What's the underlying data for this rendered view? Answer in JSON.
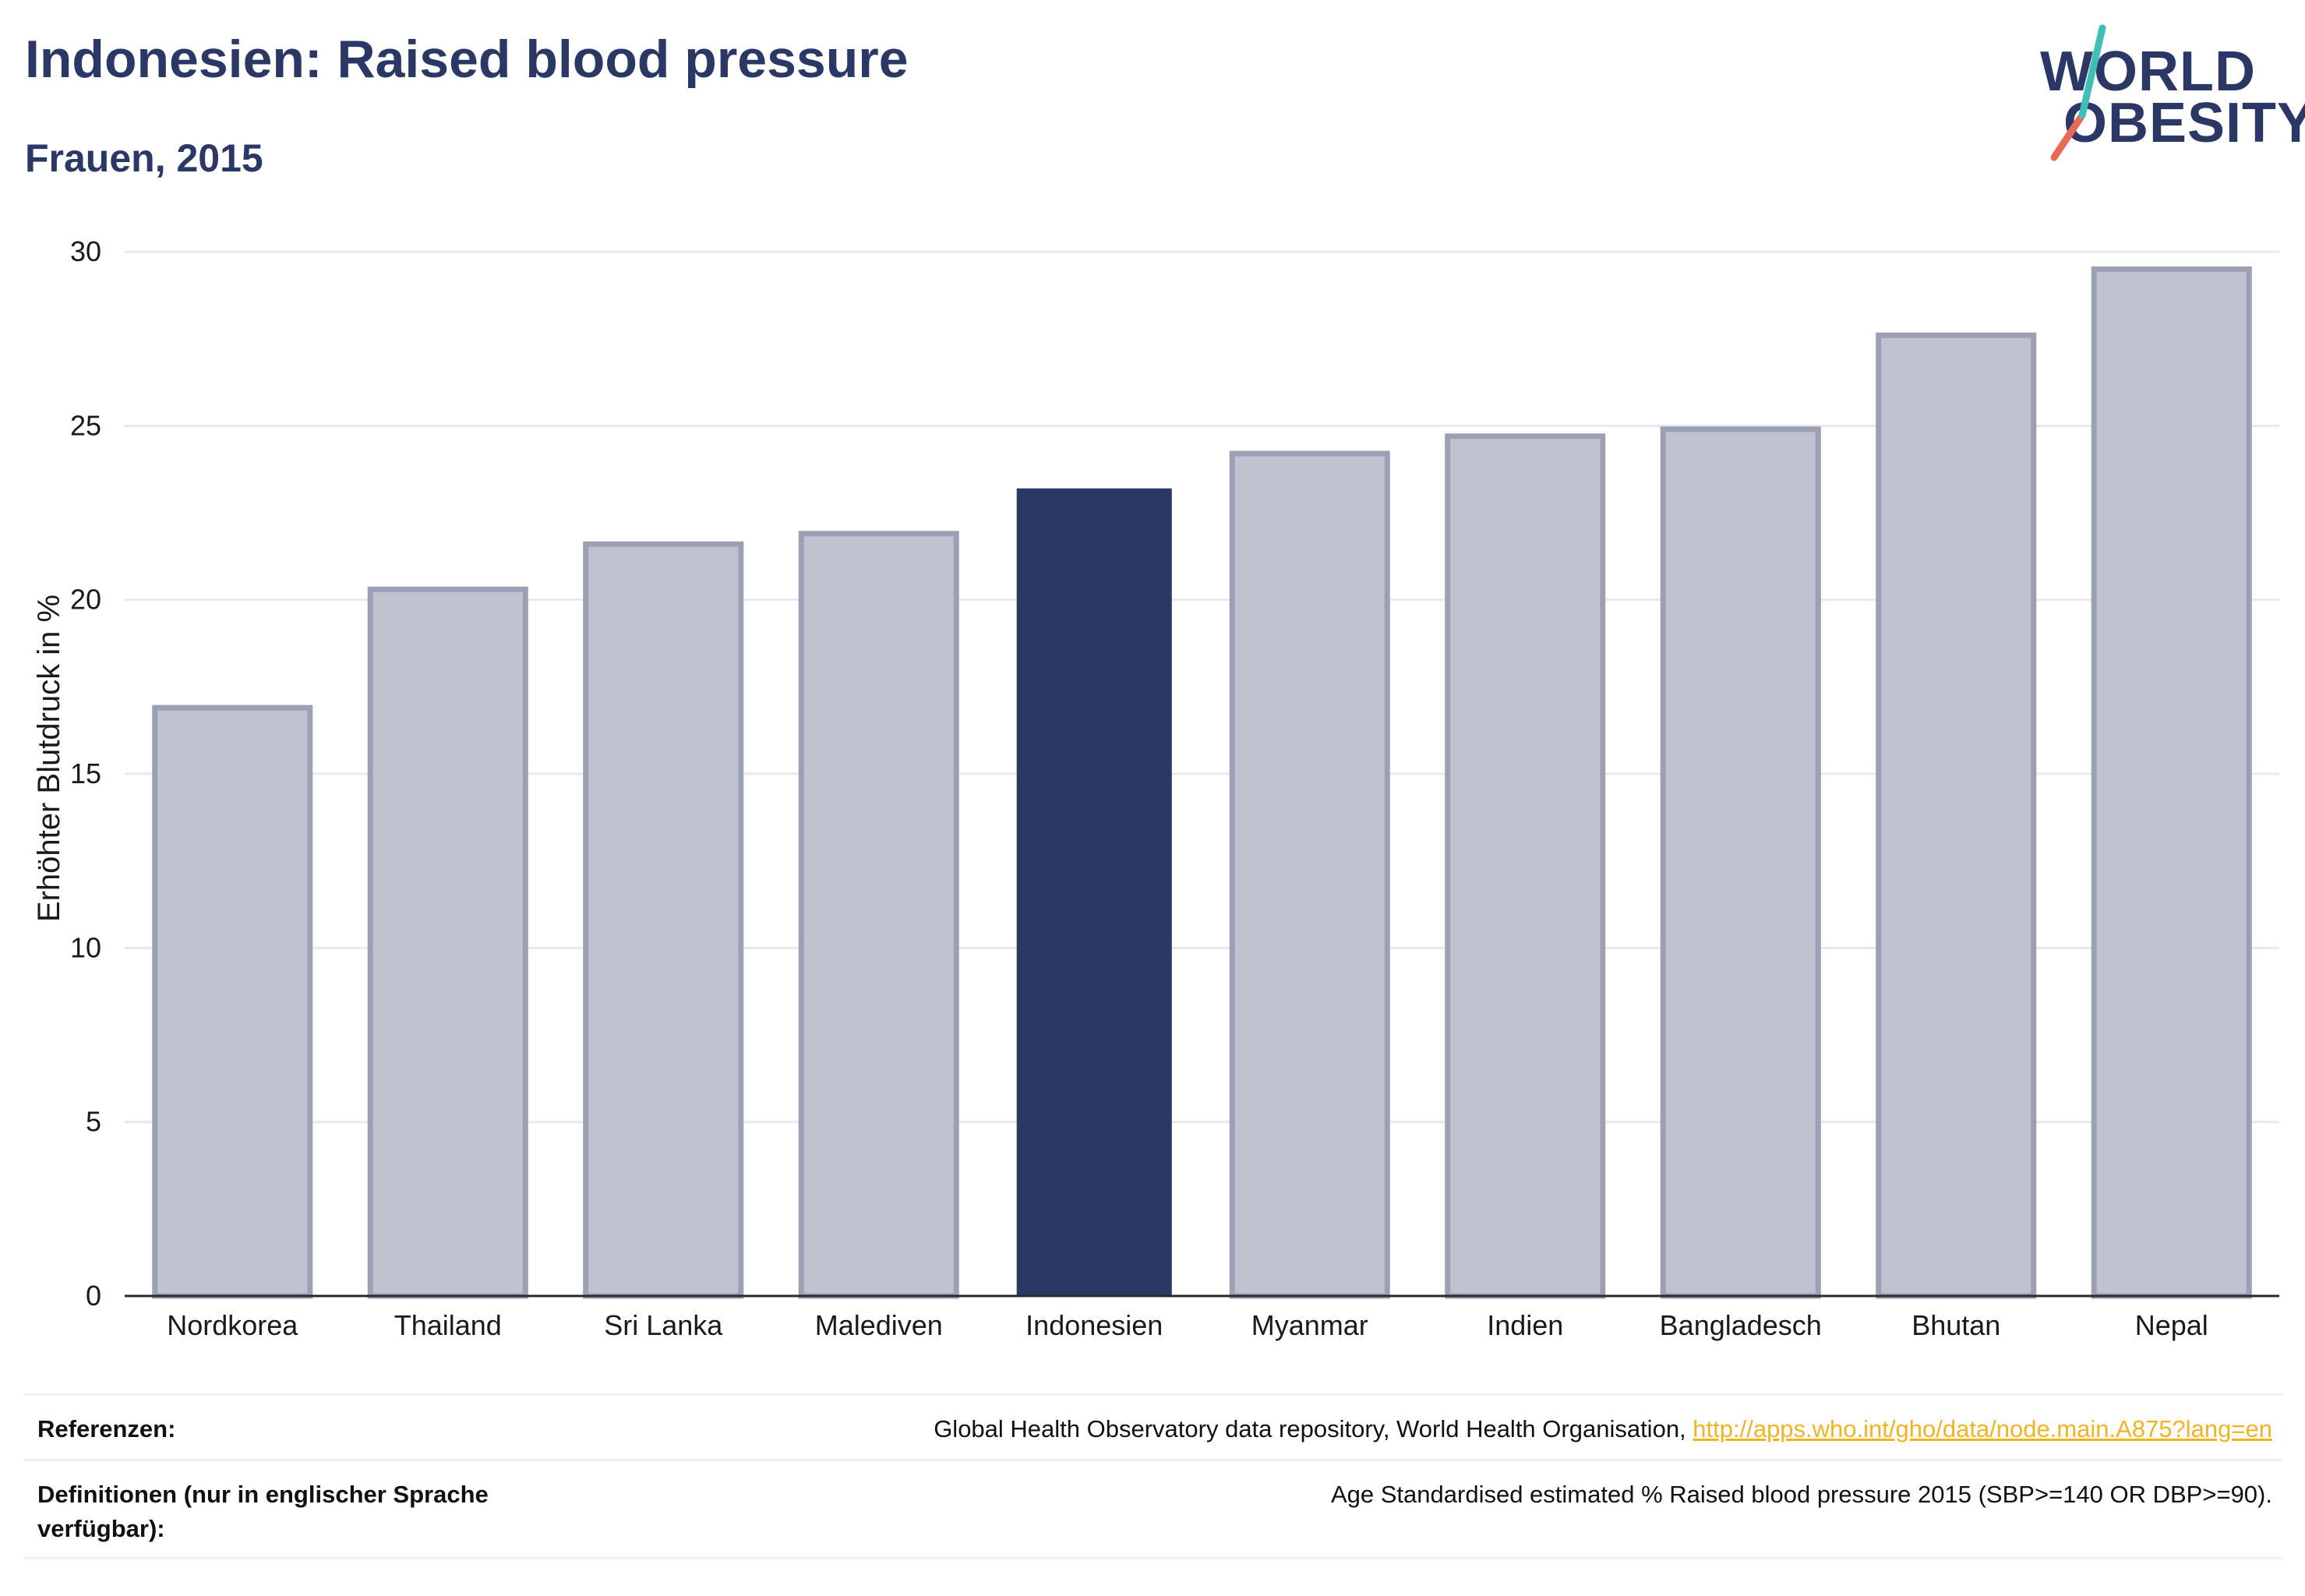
{
  "header": {
    "title": "Indonesien: Raised blood pressure",
    "subtitle": "Frauen, 2015"
  },
  "logo": {
    "line1": "WORLD",
    "line2": "OBESITY"
  },
  "colors": {
    "highlight_bar": "#2b3764",
    "other_bar_fill": "#bfc2cf",
    "other_bar_stroke": "#9ba0b5",
    "gridline": "#e8e9ee",
    "link": "#f0b323",
    "logo_teal": "#3fbfb5",
    "logo_coral": "#e86a55"
  },
  "chart_data": {
    "type": "bar",
    "title": "",
    "xlabel": "",
    "ylabel": "Erhöhter Blutdruck in %",
    "ylim": [
      0,
      30
    ],
    "yticks": [
      "0",
      "5",
      "10",
      "15",
      "20",
      "25",
      "30"
    ],
    "grid": true,
    "categories": [
      "Nordkorea",
      "Thailand",
      "Sri Lanka",
      "Malediven",
      "Indonesien",
      "Myanmar",
      "Indien",
      "Bangladesch",
      "Bhutan",
      "Nepal"
    ],
    "values": [
      16.9,
      20.3,
      21.6,
      21.9,
      23.2,
      24.2,
      24.7,
      24.9,
      27.6,
      29.5
    ],
    "highlight": "Indonesien"
  },
  "footer": {
    "references_label": "Referenzen:",
    "references_text": "Global Health Observatory data repository, World Health Organisation, ",
    "references_link": "http://apps.who.int/gho/data/node.main.A875?lang=en",
    "definitions_label": "Definitionen (nur in englischer Sprache verfügbar):",
    "definitions_text": "Age Standardised estimated % Raised blood pressure 2015 (SBP>=140 OR DBP>=90)."
  }
}
